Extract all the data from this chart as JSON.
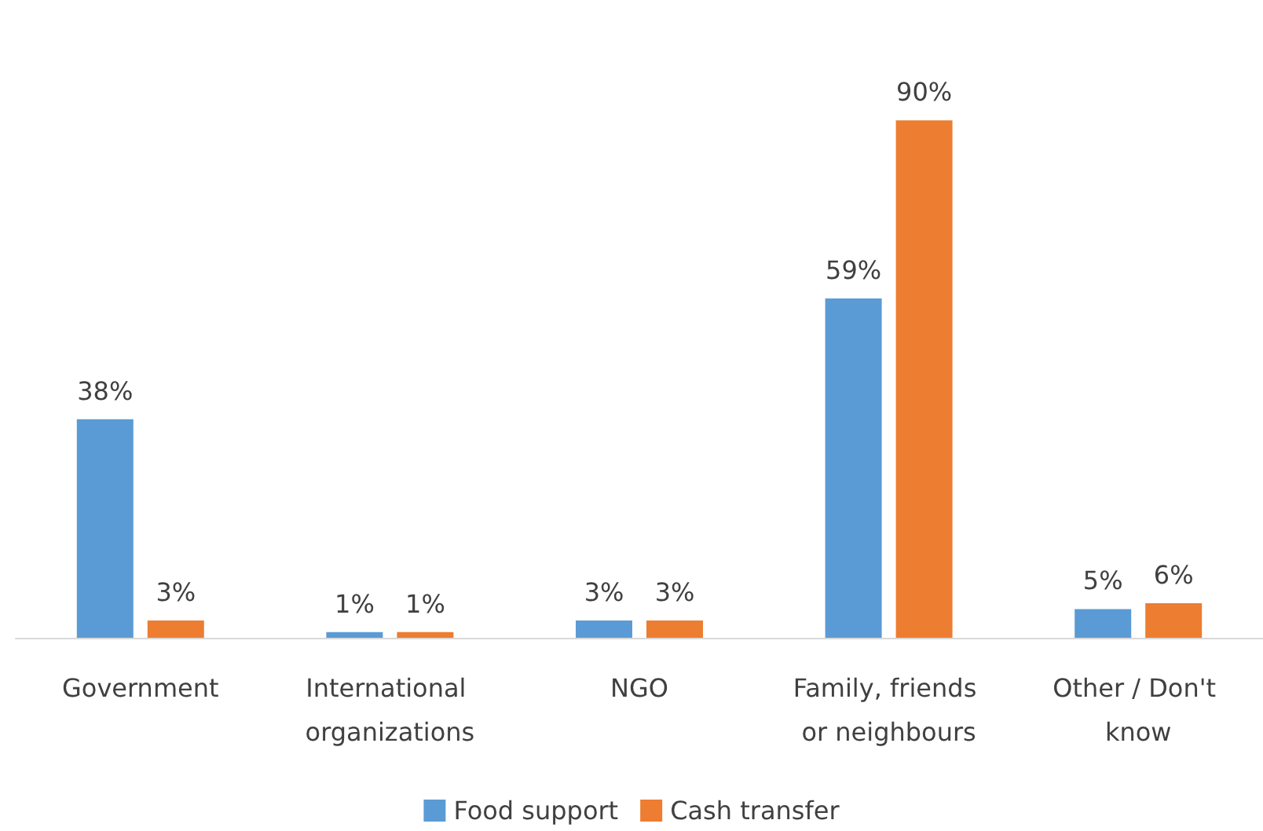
{
  "chart_data": {
    "type": "bar",
    "categories": [
      "Government",
      "International organizations",
      "NGO",
      "Family, friends or neighbours",
      "Other / Don't know"
    ],
    "series": [
      {
        "name": "Food support",
        "color": "#5b9bd5",
        "values": [
          38,
          1,
          3,
          59,
          5
        ],
        "value_labels": [
          "38%",
          "1%",
          "3%",
          "59%",
          "5%"
        ]
      },
      {
        "name": "Cash transfer",
        "color": "#ed7d31",
        "values": [
          3,
          1,
          3,
          90,
          6
        ],
        "value_labels": [
          "3%",
          "1%",
          "3%",
          "90%",
          "6%"
        ]
      }
    ],
    "legend": "bottom"
  }
}
